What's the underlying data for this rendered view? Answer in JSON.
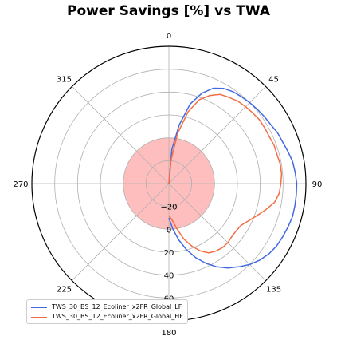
{
  "chart_data": {
    "type": "polar-line",
    "title": "Power Savings [%] vs TWA",
    "angle_ticks": [
      {
        "angle": 0,
        "label": "0"
      },
      {
        "angle": 45,
        "label": "45"
      },
      {
        "angle": 90,
        "label": "90"
      },
      {
        "angle": 135,
        "label": "135"
      },
      {
        "angle": 180,
        "label": "180"
      },
      {
        "angle": 225,
        "label": "225"
      },
      {
        "angle": 270,
        "label": "270"
      },
      {
        "angle": 315,
        "label": "315"
      }
    ],
    "radial_ticks": [
      -20,
      0,
      20,
      40,
      60
    ],
    "rlim": [
      -40,
      80
    ],
    "zero_fill_color": "#ffb3b3",
    "grid": true,
    "legend_placement": "lower-left",
    "series": [
      {
        "name": "TWS_30_BS_12_Ecoliner_x2FR_Global_LF",
        "color": "#4169e1",
        "theta": [
          0,
          5,
          10,
          15,
          20,
          25,
          30,
          35,
          40,
          45,
          50,
          55,
          60,
          65,
          70,
          75,
          80,
          85,
          90,
          95,
          100,
          105,
          110,
          115,
          120,
          125,
          130,
          135,
          140,
          145,
          150,
          155,
          160,
          165,
          170,
          175,
          180
        ],
        "r": [
          -40,
          -10,
          12,
          32,
          44,
          52,
          56,
          58,
          59,
          60,
          61,
          62,
          63,
          65,
          66,
          68,
          70,
          71,
          72,
          72,
          72,
          72,
          71,
          70,
          69,
          67,
          64,
          60,
          55,
          50,
          44,
          37,
          29,
          20,
          10,
          0,
          -10
        ]
      },
      {
        "name": "TWS_30_BS_12_Ecoliner_x2FR_Global_HF",
        "color": "#f46d43",
        "theta": [
          0,
          5,
          10,
          15,
          20,
          25,
          30,
          35,
          40,
          45,
          50,
          55,
          60,
          65,
          70,
          75,
          80,
          85,
          90,
          95,
          100,
          105,
          110,
          115,
          120,
          125,
          130,
          135,
          140,
          145,
          150,
          155,
          160,
          165,
          170,
          175,
          180
        ],
        "r": [
          -40,
          -20,
          5,
          25,
          38,
          45,
          50,
          52,
          54,
          55,
          56,
          57,
          57,
          57,
          58,
          58,
          59,
          59,
          58,
          57,
          54,
          48,
          42,
          37,
          33,
          32,
          32,
          33,
          33,
          32,
          30,
          25,
          18,
          10,
          0,
          -8,
          -12
        ]
      }
    ]
  }
}
